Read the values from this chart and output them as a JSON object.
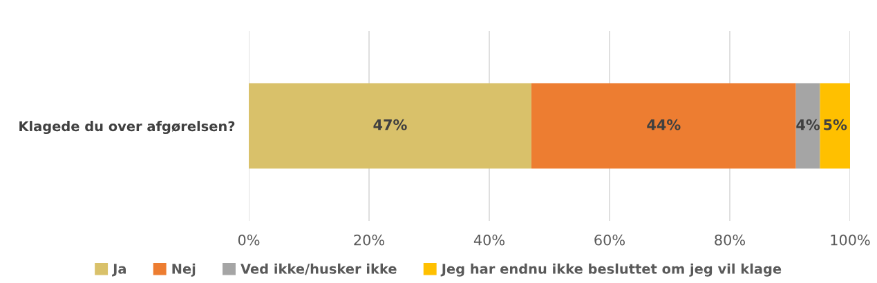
{
  "chart_data": {
    "type": "bar",
    "orientation": "horizontal",
    "stacked": true,
    "categories": [
      "Klagede du over afgørelsen?"
    ],
    "series": [
      {
        "name": "Ja",
        "color": "#d9c16a",
        "values": [
          47
        ]
      },
      {
        "name": "Nej",
        "color": "#ed7d31",
        "values": [
          44
        ]
      },
      {
        "name": "Ved ikke/husker ikke",
        "color": "#a5a5a5",
        "values": [
          4
        ]
      },
      {
        "name": "Jeg har endnu ikke besluttet om jeg vil klage",
        "color": "#ffc000",
        "values": [
          5
        ]
      }
    ],
    "value_labels": [
      [
        "47%"
      ],
      [
        "44%"
      ],
      [
        "4%"
      ],
      [
        "5%"
      ]
    ],
    "xlim": [
      0,
      100
    ],
    "xticks": [
      {
        "value": 0,
        "label": "0%"
      },
      {
        "value": 20,
        "label": "20%"
      },
      {
        "value": 40,
        "label": "40%"
      },
      {
        "value": 60,
        "label": "60%"
      },
      {
        "value": 80,
        "label": "80%"
      },
      {
        "value": 100,
        "label": "100%"
      }
    ],
    "grid": "x",
    "legend": "bottom"
  }
}
